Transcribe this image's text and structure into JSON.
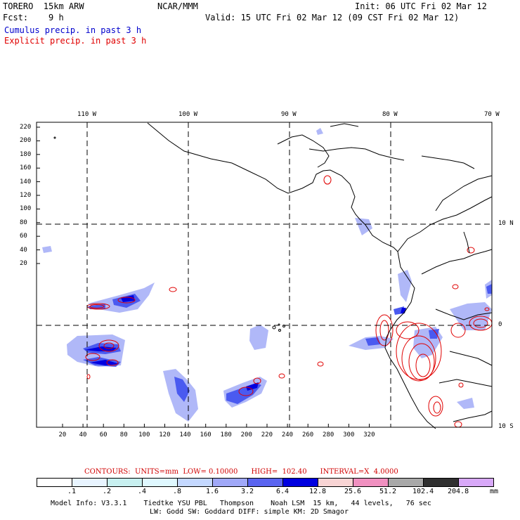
{
  "header": {
    "model": "TORERO  15km ARW",
    "org": "NCAR/MMM",
    "init": "Init: 06 UTC Fri 02 Mar 12",
    "fcst": "Fcst:    9 h",
    "valid": "Valid: 15 UTC Fri 02 Mar 12 (09 CST Fri 02 Mar 12)",
    "field1": "Cumulus precip. in past 3 h",
    "field2": "Explicit precip. in past 3 h"
  },
  "map": {
    "top_lon_labels": [
      "110 W",
      "100 W",
      "90 W",
      "80 W",
      "70 W"
    ],
    "right_lat_labels": [
      "10 N",
      "0",
      "10 S"
    ],
    "y_ticks": [
      "220",
      "200",
      "180",
      "160",
      "140",
      "120",
      "100",
      "80",
      "60",
      "40",
      "20"
    ],
    "x_ticks": [
      "20",
      "40",
      "60",
      "80",
      "100",
      "120",
      "140",
      "160",
      "180",
      "200",
      "220",
      "240",
      "260",
      "280",
      "300",
      "320"
    ],
    "colors": {
      "coast": "#000000",
      "explicit": "#e00000",
      "cumulus_light": "#b0b8f8",
      "cumulus_mid": "#4a5af0",
      "cumulus_dark": "#0000e0"
    }
  },
  "legend": {
    "contours_text": "CONTOURS:  UNITS=mm  LOW= 0.10000      HIGH=  102.40      INTERVAL=X  4.0000",
    "boxes": [
      {
        "color": "#ffffff"
      },
      {
        "color": "#e8f4ff"
      },
      {
        "color": "#c8f0f0"
      },
      {
        "color": "#dff8ff"
      },
      {
        "color": "#c4d8ff"
      },
      {
        "color": "#a0a8f8"
      },
      {
        "color": "#5a64f0"
      },
      {
        "color": "#0000e0"
      },
      {
        "color": "#f8d4d4"
      },
      {
        "color": "#f090c0"
      },
      {
        "color": "#a8a8a8"
      },
      {
        "color": "#303030"
      },
      {
        "color": "#d8a8f8"
      }
    ],
    "labels": [
      ".1",
      ".2",
      ".4",
      ".8",
      "1.6",
      "3.2",
      "6.4",
      "12.8",
      "25.6",
      "51.2",
      "102.4",
      "204.8"
    ],
    "unit": "mm"
  },
  "footer": {
    "line1": "Model Info: V3.3.1    Tiedtke YSU PBL   Thompson    Noah LSM  15 km,   44 levels,   76 sec",
    "line2": "LW: Godd SW: Goddard DIFF: simple KM: 2D Smagor"
  }
}
